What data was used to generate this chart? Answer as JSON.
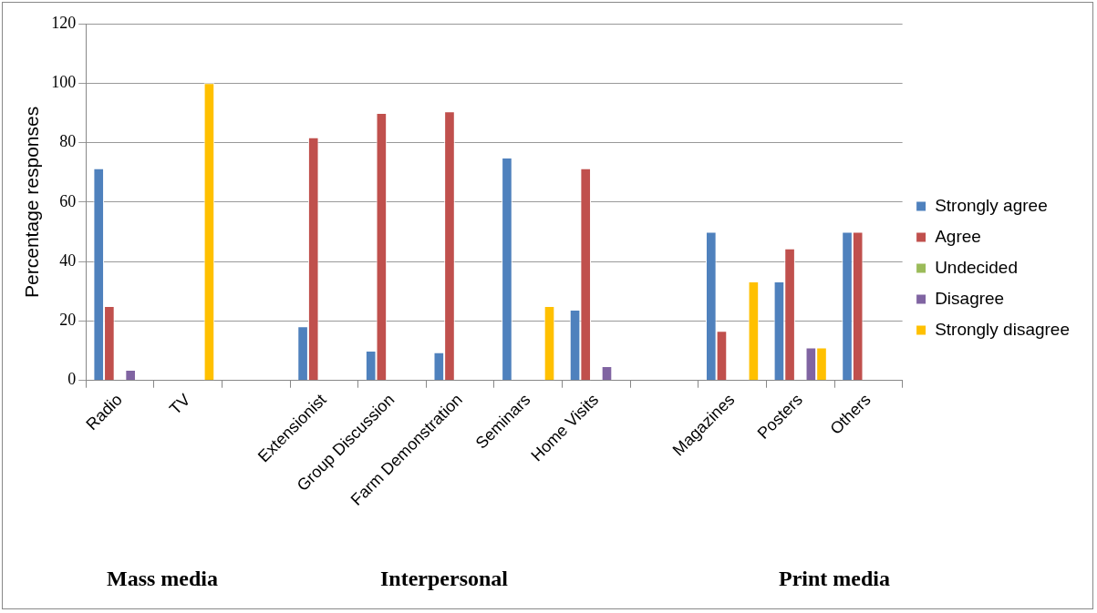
{
  "chart_data": {
    "type": "bar",
    "ylabel": "Percentage responses",
    "categories": [
      "Radio",
      "TV",
      null,
      "Extensionist",
      "Group Discussion",
      "Farm Demonstration",
      "Seminars",
      "Home Visits",
      null,
      "Magazines",
      "Posters",
      "Others"
    ],
    "series": [
      {
        "name": "Strongly agree",
        "color": "#4f81bd",
        "values": [
          71.4,
          null,
          null,
          18.2,
          10,
          9.5,
          75,
          23.8,
          null,
          50,
          33.3,
          50
        ]
      },
      {
        "name": "Agree",
        "color": "#c0504d",
        "values": [
          25,
          null,
          null,
          81.8,
          90,
          90.5,
          null,
          71.4,
          null,
          16.7,
          44.4,
          50
        ]
      },
      {
        "name": "Undecided",
        "color": "#9bbb59",
        "values": [
          null,
          null,
          null,
          null,
          null,
          null,
          null,
          null,
          null,
          null,
          null,
          null
        ]
      },
      {
        "name": "Disagree",
        "color": "#8064a2",
        "values": [
          3.6,
          null,
          null,
          null,
          null,
          null,
          null,
          4.8,
          null,
          null,
          11.1,
          null
        ]
      },
      {
        "name": "Strongly disagree",
        "color": "#ffc000",
        "values": [
          null,
          100,
          null,
          null,
          null,
          null,
          25,
          null,
          null,
          33.3,
          11.1,
          null
        ]
      }
    ],
    "ylim": [
      0,
      120
    ],
    "yticks": [
      0,
      20,
      40,
      60,
      80,
      100,
      120
    ],
    "grid": "y",
    "legend": "right",
    "annotations": [
      "Mass media",
      "Interpersonal",
      "Print media"
    ]
  }
}
